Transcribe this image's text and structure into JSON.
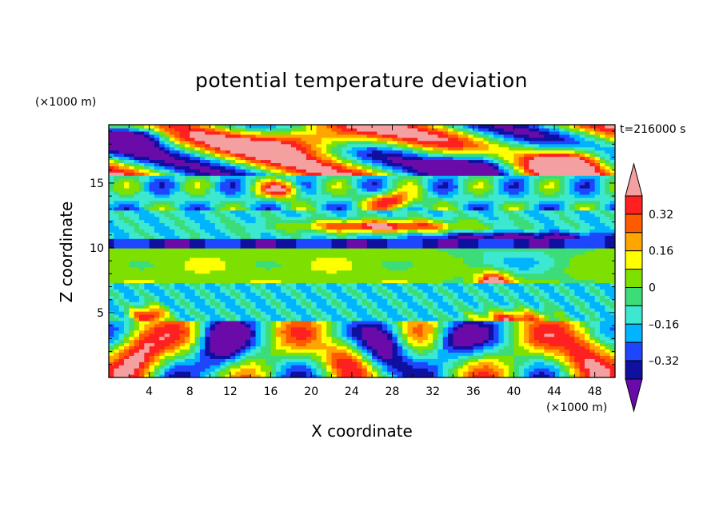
{
  "chart_data": {
    "type": "heatmap",
    "title": "potential temperature deviation",
    "xlabel": "X coordinate",
    "ylabel": "Z coordinate",
    "x_unit": "(×1000 m)",
    "y_unit": "(×1000 m)",
    "time_label": "t=216000 s",
    "xlim": [
      0,
      50
    ],
    "ylim": [
      0,
      19.5
    ],
    "x_ticks": [
      4,
      8,
      12,
      16,
      20,
      24,
      28,
      32,
      36,
      40,
      44,
      48
    ],
    "x_tick_labels": [
      "4",
      "8",
      "12",
      "16",
      "20",
      "24",
      "28",
      "32",
      "36",
      "40",
      "44",
      "48"
    ],
    "y_ticks": [
      5,
      10,
      15
    ],
    "y_tick_labels": [
      "5",
      "10",
      "15"
    ],
    "colorbar": {
      "levels": [
        -0.4,
        -0.32,
        -0.24,
        -0.16,
        -0.08,
        0,
        0.08,
        0.16,
        0.24,
        0.32,
        0.4
      ],
      "labels": [
        "0.32",
        "0.16",
        "0",
        "–0.16",
        "–0.32"
      ],
      "label_values": [
        0.32,
        0.16,
        0,
        -0.16,
        -0.32
      ],
      "colors": [
        "#6a0aa8",
        "#0f0fa0",
        "#1e46ff",
        "#00b4ff",
        "#3ce8d0",
        "#3cdc78",
        "#7ee000",
        "#ffff00",
        "#ffa500",
        "#ff5a00",
        "#ff2020",
        "#f5a0a0"
      ],
      "extend": "both"
    },
    "grid": false
  }
}
